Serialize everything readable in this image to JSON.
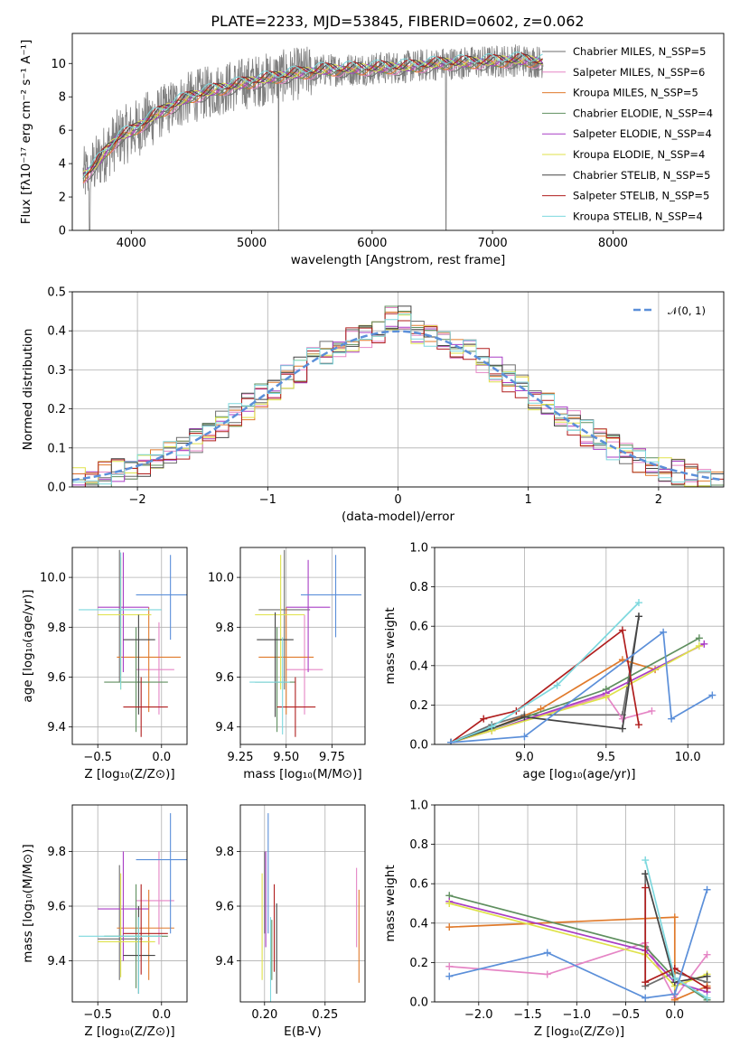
{
  "figure": {
    "title": "PLATE=2233, MJD=53845, FIBERID=0602, z=0.062"
  },
  "colors": {
    "models": [
      "#6d6d6d",
      "#e585c5",
      "#e07a2b",
      "#5f8f5f",
      "#a93ec5",
      "#dfe24a",
      "#444444",
      "#b01e1e",
      "#7dd8de"
    ],
    "accent": "#5b8fd9",
    "spectrum_data": "#7f7f7f"
  },
  "chart_data": [
    {
      "id": "spectrum",
      "type": "line",
      "title": "PLATE=2233, MJD=53845, FIBERID=0602, z=0.062",
      "xlabel": "wavelength [Angstrom, rest frame]",
      "ylabel": "Flux [fλ10⁻¹⁷ erg cm⁻² s⁻¹ A⁻¹]",
      "xlim": [
        3510,
        8920
      ],
      "ylim": [
        0,
        11.8
      ],
      "xticks": [
        4000,
        5000,
        6000,
        7000,
        8000
      ],
      "yticks": [
        0,
        2,
        4,
        6,
        8,
        10
      ],
      "grid": false,
      "legend_position": "upper right",
      "series": [
        {
          "name": "Chabrier MILES, N_SSP=5"
        },
        {
          "name": "Salpeter MILES, N_SSP=6"
        },
        {
          "name": "Kroupa MILES, N_SSP=5"
        },
        {
          "name": "Chabrier ELODIE, N_SSP=4"
        },
        {
          "name": "Salpeter ELODIE, N_SSP=4"
        },
        {
          "name": "Kroupa ELODIE, N_SSP=4"
        },
        {
          "name": "Chabrier STELIB, N_SSP=5"
        },
        {
          "name": "Salpeter STELIB, N_SSP=5"
        },
        {
          "name": "Kroupa STELIB, N_SSP=4"
        }
      ],
      "continuum": {
        "x": [
          3600,
          3700,
          3800,
          3900,
          4000,
          4100,
          4200,
          4300,
          4400,
          4500,
          4700,
          5000,
          5300,
          5600,
          6000,
          6300,
          6600,
          7000,
          7200,
          7400
        ],
        "y": [
          3.2,
          3.9,
          4.8,
          5.6,
          5.9,
          6.4,
          6.9,
          7.3,
          7.7,
          8.0,
          8.4,
          8.9,
          9.3,
          9.6,
          9.7,
          9.8,
          10.0,
          10.1,
          10.2,
          10.1
        ]
      }
    },
    {
      "id": "residuals",
      "type": "bar",
      "xlabel": "(data-model)/error",
      "ylabel": "Normed distribution",
      "xlim": [
        -2.5,
        2.5
      ],
      "ylim": [
        0,
        0.5
      ],
      "xticks": [
        -2,
        -1,
        0,
        1,
        2
      ],
      "yticks": [
        0.0,
        0.1,
        0.2,
        0.3,
        0.4,
        0.5
      ],
      "grid": true,
      "legend_position": "upper right",
      "legend": [
        "𝒩(0, 1)"
      ],
      "bin_width": 0.1,
      "gaussian": {
        "mean": 0,
        "sigma": 1
      }
    },
    {
      "id": "age-vs-Z",
      "type": "scatter",
      "xlabel": "Z [log₁₀(Z/Z⊙)]",
      "ylabel": "age  [log₁₀(age/yr)]",
      "xlim": [
        -0.7,
        0.2
      ],
      "ylim": [
        9.33,
        10.12
      ],
      "xticks": [
        -0.5,
        0.0
      ],
      "yticks": [
        9.4,
        9.6,
        9.8,
        10.0
      ],
      "grid": true,
      "points": [
        {
          "x": -0.33,
          "y": 9.85,
          "xlo": -0.5,
          "xhi": -0.13,
          "ylo": 9.58,
          "yhi": 10.11
        },
        {
          "x": -0.02,
          "y": 9.63,
          "xlo": -0.2,
          "xhi": 0.1,
          "ylo": 9.45,
          "yhi": 9.82
        },
        {
          "x": -0.1,
          "y": 9.68,
          "xlo": -0.35,
          "xhi": 0.15,
          "ylo": 9.46,
          "yhi": 9.88
        },
        {
          "x": -0.2,
          "y": 9.58,
          "xlo": -0.45,
          "xhi": 0.05,
          "ylo": 9.38,
          "yhi": 9.8
        },
        {
          "x": -0.3,
          "y": 9.88,
          "xlo": -0.5,
          "xhi": -0.1,
          "ylo": 9.62,
          "yhi": 10.1
        },
        {
          "x": -0.32,
          "y": 9.85,
          "xlo": -0.5,
          "xhi": -0.08,
          "ylo": 9.55,
          "yhi": 10.08
        },
        {
          "x": -0.18,
          "y": 9.75,
          "xlo": -0.3,
          "xhi": -0.05,
          "ylo": 9.45,
          "yhi": 9.85
        },
        {
          "x": -0.16,
          "y": 9.48,
          "xlo": -0.3,
          "xhi": 0.05,
          "ylo": 9.36,
          "yhi": 9.6
        },
        {
          "x": -0.32,
          "y": 9.87,
          "xlo": -0.65,
          "xhi": 0.0,
          "ylo": 9.55,
          "yhi": 10.1
        },
        {
          "x": 0.07,
          "y": 9.93,
          "xlo": -0.2,
          "xhi": 0.2,
          "ylo": 9.75,
          "yhi": 10.09
        }
      ]
    },
    {
      "id": "age-vs-mass",
      "type": "scatter",
      "xlabel": "mass [log₁₀(M/M⊙)]",
      "ylabel": "",
      "xlim": [
        9.25,
        9.93
      ],
      "ylim": [
        9.33,
        10.12
      ],
      "xticks": [
        9.25,
        9.5,
        9.75
      ],
      "yticks": [
        9.4,
        9.6,
        9.8,
        10.0
      ],
      "grid": true,
      "points": [
        {
          "x": 9.49,
          "y": 9.87,
          "xlo": 9.35,
          "xhi": 9.63,
          "ylo": 9.55,
          "yhi": 10.11
        },
        {
          "x": 9.6,
          "y": 9.63,
          "xlo": 9.5,
          "xhi": 9.7,
          "ylo": 9.45,
          "yhi": 9.85
        },
        {
          "x": 9.5,
          "y": 9.68,
          "xlo": 9.35,
          "xhi": 9.65,
          "ylo": 9.45,
          "yhi": 9.88
        },
        {
          "x": 9.45,
          "y": 9.58,
          "xlo": 9.33,
          "xhi": 9.55,
          "ylo": 9.38,
          "yhi": 9.8
        },
        {
          "x": 9.62,
          "y": 9.88,
          "xlo": 9.5,
          "xhi": 9.74,
          "ylo": 9.62,
          "yhi": 10.07
        },
        {
          "x": 9.47,
          "y": 9.85,
          "xlo": 9.33,
          "xhi": 9.6,
          "ylo": 9.55,
          "yhi": 10.09
        },
        {
          "x": 9.44,
          "y": 9.75,
          "xlo": 9.34,
          "xhi": 9.54,
          "ylo": 9.44,
          "yhi": 9.86
        },
        {
          "x": 9.55,
          "y": 9.48,
          "xlo": 9.45,
          "xhi": 9.66,
          "ylo": 9.36,
          "yhi": 9.6
        },
        {
          "x": 9.48,
          "y": 9.58,
          "xlo": 9.3,
          "xhi": 9.52,
          "ylo": 9.37,
          "yhi": 9.76
        },
        {
          "x": 9.77,
          "y": 9.93,
          "xlo": 9.58,
          "xhi": 9.91,
          "ylo": 9.76,
          "yhi": 10.09
        }
      ]
    },
    {
      "id": "weight-vs-age",
      "type": "line",
      "xlabel": "age  [log₁₀(age/yr)]",
      "ylabel": "mass weight",
      "xlim": [
        8.45,
        10.22
      ],
      "ylim": [
        0,
        1.0
      ],
      "xticks": [
        9.0,
        9.5,
        10.0
      ],
      "yticks": [
        0.0,
        0.2,
        0.4,
        0.6,
        0.8,
        1.0
      ],
      "grid": true,
      "series": [
        {
          "x": [
            8.55,
            8.8,
            9.0,
            9.6,
            9.7
          ],
          "y": [
            0.01,
            0.1,
            0.15,
            0.15,
            0.65
          ]
        },
        {
          "x": [
            8.55,
            8.8,
            9.5,
            9.6,
            9.78
          ],
          "y": [
            0.01,
            0.07,
            0.25,
            0.13,
            0.17
          ]
        },
        {
          "x": [
            8.55,
            8.8,
            9.1,
            9.6,
            9.8
          ],
          "y": [
            0.01,
            0.08,
            0.18,
            0.43,
            0.38
          ]
        },
        {
          "x": [
            8.55,
            8.8,
            9.5,
            10.07
          ],
          "y": [
            0.01,
            0.08,
            0.28,
            0.54
          ]
        },
        {
          "x": [
            8.55,
            8.8,
            9.5,
            10.1
          ],
          "y": [
            0.01,
            0.07,
            0.26,
            0.51
          ]
        },
        {
          "x": [
            8.55,
            8.8,
            9.5,
            10.07
          ],
          "y": [
            0.01,
            0.07,
            0.24,
            0.5
          ]
        },
        {
          "x": [
            8.55,
            9.0,
            9.6,
            9.7
          ],
          "y": [
            0.01,
            0.14,
            0.08,
            0.65
          ]
        },
        {
          "x": [
            8.55,
            8.75,
            8.95,
            9.6,
            9.7
          ],
          "y": [
            0.01,
            0.13,
            0.17,
            0.58,
            0.1
          ]
        },
        {
          "x": [
            8.55,
            8.8,
            9.2,
            9.7
          ],
          "y": [
            0.01,
            0.09,
            0.3,
            0.72
          ]
        },
        {
          "x": [
            8.55,
            9.0,
            9.85,
            9.9,
            10.15
          ],
          "y": [
            0.01,
            0.04,
            0.57,
            0.13,
            0.25
          ]
        }
      ]
    },
    {
      "id": "mass-vs-Z",
      "type": "scatter",
      "xlabel": "Z [log₁₀(Z/Z⊙)]",
      "ylabel": "mass [log₁₀(M/M⊙)]",
      "xlim": [
        -0.7,
        0.2
      ],
      "ylim": [
        9.25,
        9.97
      ],
      "xticks": [
        -0.5,
        0.0
      ],
      "yticks": [
        9.4,
        9.6,
        9.8
      ],
      "grid": true,
      "points": [
        {
          "x": -0.33,
          "y": 9.48,
          "xlo": -0.5,
          "xhi": -0.15,
          "ylo": 9.33,
          "yhi": 9.75
        },
        {
          "x": -0.02,
          "y": 9.62,
          "xlo": -0.2,
          "xhi": 0.1,
          "ylo": 9.46,
          "yhi": 9.8
        },
        {
          "x": -0.1,
          "y": 9.52,
          "xlo": -0.35,
          "xhi": 0.1,
          "ylo": 9.33,
          "yhi": 9.66
        },
        {
          "x": -0.2,
          "y": 9.49,
          "xlo": -0.45,
          "xhi": 0.05,
          "ylo": 9.3,
          "yhi": 9.68
        },
        {
          "x": -0.3,
          "y": 9.59,
          "xlo": -0.5,
          "xhi": -0.1,
          "ylo": 9.4,
          "yhi": 9.8
        },
        {
          "x": -0.32,
          "y": 9.47,
          "xlo": -0.5,
          "xhi": -0.05,
          "ylo": 9.34,
          "yhi": 9.72
        },
        {
          "x": -0.18,
          "y": 9.42,
          "xlo": -0.3,
          "xhi": -0.05,
          "ylo": 9.28,
          "yhi": 9.6
        },
        {
          "x": -0.16,
          "y": 9.5,
          "xlo": -0.3,
          "xhi": 0.05,
          "ylo": 9.35,
          "yhi": 9.68
        },
        {
          "x": -0.18,
          "y": 9.49,
          "xlo": -0.65,
          "xhi": 0.0,
          "ylo": 9.28,
          "yhi": 9.56
        },
        {
          "x": 0.07,
          "y": 9.77,
          "xlo": -0.2,
          "xhi": 0.2,
          "ylo": 9.5,
          "yhi": 9.94
        }
      ]
    },
    {
      "id": "mass-vs-ebv",
      "type": "scatter",
      "xlabel": "E(B-V)",
      "ylabel": "",
      "xlim": [
        0.18,
        0.283
      ],
      "ylim": [
        9.25,
        9.97
      ],
      "xticks": [
        0.2,
        0.25
      ],
      "yticks": [
        9.4,
        9.6,
        9.8
      ],
      "grid": true,
      "points": [
        {
          "x": 0.2,
          "ylo": 9.5,
          "yhi": 9.8
        },
        {
          "x": 0.276,
          "ylo": 9.45,
          "yhi": 9.74
        },
        {
          "x": 0.278,
          "ylo": 9.32,
          "yhi": 9.66
        },
        {
          "x": 0.206,
          "ylo": 9.33,
          "yhi": 9.55
        },
        {
          "x": 0.201,
          "ylo": 9.45,
          "yhi": 9.8
        },
        {
          "x": 0.198,
          "ylo": 9.33,
          "yhi": 9.72
        },
        {
          "x": 0.21,
          "ylo": 9.28,
          "yhi": 9.61
        },
        {
          "x": 0.208,
          "ylo": 9.36,
          "yhi": 9.68
        },
        {
          "x": 0.205,
          "ylo": 9.25,
          "yhi": 9.56
        },
        {
          "x": 0.203,
          "ylo": 9.5,
          "yhi": 9.94
        }
      ]
    },
    {
      "id": "weight-vs-Z",
      "type": "line",
      "xlabel": "Z [log₁₀(Z/Z⊙)]",
      "ylabel": "mass weight",
      "xlim": [
        -2.45,
        0.5
      ],
      "ylim": [
        0,
        1.0
      ],
      "xticks": [
        -2.0,
        -1.5,
        -1.0,
        -0.5,
        0.0
      ],
      "yticks": [
        0.0,
        0.2,
        0.4,
        0.6,
        0.8,
        1.0
      ],
      "grid": true,
      "series": [
        {
          "x": [
            -0.3,
            -0.3,
            0.0,
            0.33
          ],
          "y": [
            0.65,
            0.08,
            0.15,
            0.1
          ]
        },
        {
          "x": [
            -2.3,
            -1.3,
            -0.3,
            0.0,
            0.33
          ],
          "y": [
            0.18,
            0.14,
            0.3,
            0.02,
            0.24
          ]
        },
        {
          "x": [
            -2.3,
            0.0,
            0.0,
            0.33
          ],
          "y": [
            0.38,
            0.43,
            0.01,
            0.08
          ]
        },
        {
          "x": [
            -2.3,
            -0.3,
            0.0,
            0.33
          ],
          "y": [
            0.54,
            0.28,
            0.12,
            0.01
          ]
        },
        {
          "x": [
            -2.3,
            -0.3,
            0.0,
            0.33
          ],
          "y": [
            0.51,
            0.26,
            0.1,
            0.05
          ]
        },
        {
          "x": [
            -2.3,
            -0.3,
            0.0,
            0.33
          ],
          "y": [
            0.5,
            0.24,
            0.08,
            0.14
          ]
        },
        {
          "x": [
            -0.3,
            0.0,
            0.33
          ],
          "y": [
            0.65,
            0.1,
            0.13
          ]
        },
        {
          "x": [
            -0.3,
            -0.3,
            0.0,
            0.33
          ],
          "y": [
            0.58,
            0.1,
            0.17,
            0.07
          ]
        },
        {
          "x": [
            -0.3,
            0.0,
            0.33
          ],
          "y": [
            0.72,
            0.12,
            0.02
          ]
        },
        {
          "x": [
            -2.3,
            -1.3,
            -0.3,
            0.0,
            0.33
          ],
          "y": [
            0.13,
            0.25,
            0.02,
            0.04,
            0.57
          ]
        }
      ]
    }
  ]
}
